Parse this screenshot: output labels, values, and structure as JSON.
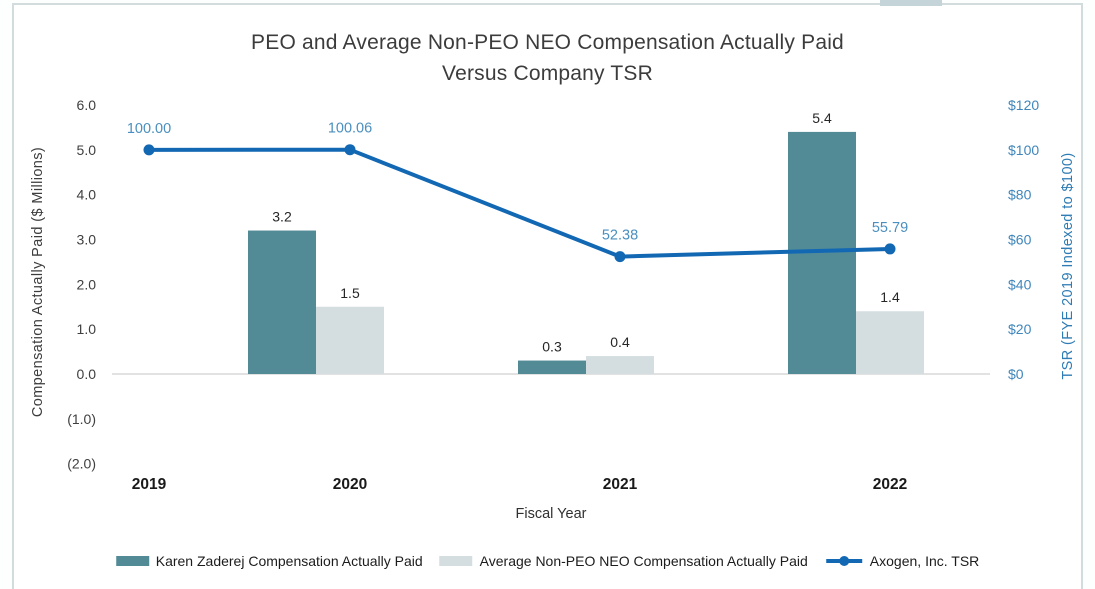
{
  "chart": {
    "title_line1": "PEO and Average Non-PEO NEO Compensation Actually Paid",
    "title_line2": "Versus Company TSR"
  },
  "chart_data": {
    "type": "bar",
    "subtype": "combo-bar-line-dual-axis",
    "title": "PEO and Average Non-PEO NEO Compensation Actually Paid Versus Company TSR",
    "title_lines": [
      "PEO and Average Non-PEO NEO Compensation Actually Paid",
      "Versus Company TSR"
    ],
    "xlabel": "Fiscal Year",
    "ylabel_left": "Compensation Actually Paid ($ Millions)",
    "ylabel_right": "TSR (FYE 2019 Indexed to $100)",
    "categories": [
      "2019",
      "2020",
      "2021",
      "2022"
    ],
    "series": [
      {
        "name": "Karen Zaderej Compensation Actually Paid",
        "type": "bar",
        "axis": "left",
        "color": "#528b96",
        "values": [
          null,
          3.2,
          0.3,
          5.4
        ],
        "labels": [
          "",
          "3.2",
          "0.3",
          "5.4"
        ]
      },
      {
        "name": "Average Non-PEO NEO Compensation Actually Paid",
        "type": "bar",
        "axis": "left",
        "color": "#d4dee1",
        "values": [
          null,
          1.5,
          0.4,
          1.4
        ],
        "labels": [
          "",
          "1.5",
          "0.4",
          "1.4"
        ]
      },
      {
        "name": "Axogen, Inc. TSR",
        "type": "line",
        "axis": "right",
        "color": "#1368b4",
        "values": [
          100.0,
          100.06,
          52.38,
          55.79
        ],
        "labels": [
          "100.00",
          "100.06",
          "52.38",
          "55.79"
        ]
      }
    ],
    "y_left": {
      "min": -2.0,
      "max": 6.0,
      "step": 1.0,
      "tick_labels": [
        "6.0",
        "5.0",
        "4.0",
        "3.0",
        "2.0",
        "1.0",
        "0.0",
        "(1.0)",
        "(2.0)"
      ]
    },
    "y_right": {
      "min": 0,
      "max": 120,
      "step": 20,
      "tick_labels": [
        "$120",
        "$100",
        "$80",
        "$60",
        "$40",
        "$20",
        "$0"
      ]
    },
    "grid": false,
    "legend_position": "bottom",
    "colors": {
      "axis_line": "#d8d8d8",
      "left_tick_text": "#3f3f3f",
      "right_tick_text": "#3f86bb",
      "bar_label_text": "#262626",
      "line_label_text": "#4a8fbf",
      "category_label_text": "#1a1a1a"
    }
  }
}
